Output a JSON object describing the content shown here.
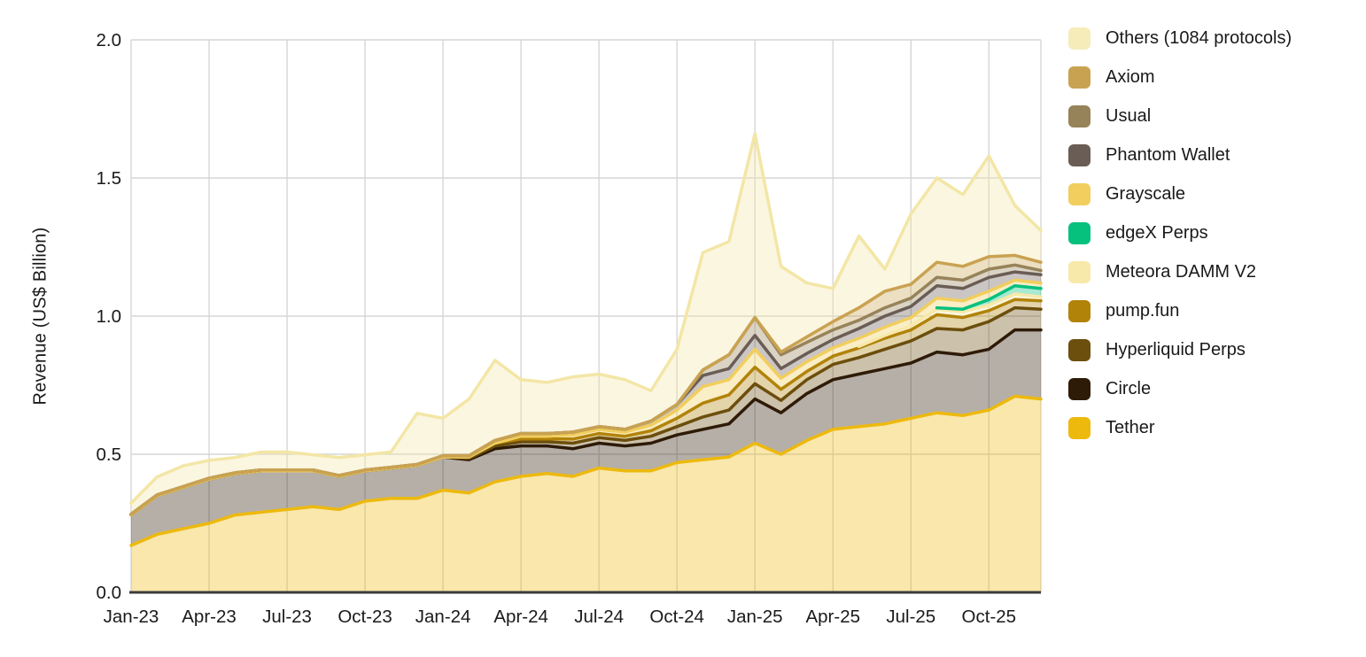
{
  "y_axis": {
    "title": "Revenue (US$ Billion)",
    "tick_labels": [
      "0.0",
      "0.5",
      "1.0",
      "1.5",
      "2.0"
    ],
    "tick_values": [
      0,
      0.5,
      1.0,
      1.5,
      2.0
    ]
  },
  "x_axis": {
    "tick_labels": [
      "Jan-23",
      "Apr-23",
      "Jul-23",
      "Oct-23",
      "Jan-24",
      "Apr-24",
      "Jul-24",
      "Oct-24",
      "Jan-25",
      "Apr-25",
      "Jul-25",
      "Oct-25"
    ],
    "tick_every_months": 3
  },
  "chart_data": {
    "type": "area",
    "stacked": true,
    "title": "",
    "xlabel": "",
    "ylabel": "Revenue (US$ Billion)",
    "ylim": [
      0,
      2.0
    ],
    "grid": true,
    "legend_position": "right",
    "unit": "US$ Billion per month",
    "months": [
      "Jan-23",
      "Feb-23",
      "Mar-23",
      "Apr-23",
      "May-23",
      "Jun-23",
      "Jul-23",
      "Aug-23",
      "Sep-23",
      "Oct-23",
      "Nov-23",
      "Dec-23",
      "Jan-24",
      "Feb-24",
      "Mar-24",
      "Apr-24",
      "May-24",
      "Jun-24",
      "Jul-24",
      "Aug-24",
      "Sep-24",
      "Oct-24",
      "Nov-24",
      "Dec-24",
      "Jan-25",
      "Feb-25",
      "Mar-25",
      "Apr-25",
      "May-25",
      "Jun-25",
      "Jul-25",
      "Aug-25",
      "Sep-25",
      "Oct-25",
      "Nov-25",
      "Dec-25"
    ],
    "legend_order_top_to_bottom": [
      "Others (1084 protocols)",
      "Axiom",
      "Usual",
      "Phantom Wallet",
      "Grayscale",
      "edgeX Perps",
      "Meteora DAMM V2",
      "pump.fun",
      "Hyperliquid Perps",
      "Circle",
      "Tether"
    ],
    "series": [
      {
        "name": "Tether",
        "color": "#EDB90D",
        "line_start": 0,
        "values": [
          0.17,
          0.21,
          0.23,
          0.25,
          0.28,
          0.29,
          0.3,
          0.31,
          0.3,
          0.33,
          0.34,
          0.34,
          0.37,
          0.36,
          0.4,
          0.42,
          0.43,
          0.42,
          0.45,
          0.44,
          0.44,
          0.47,
          0.48,
          0.49,
          0.54,
          0.5,
          0.55,
          0.59,
          0.6,
          0.61,
          0.63,
          0.65,
          0.64,
          0.66,
          0.71,
          0.7
        ]
      },
      {
        "name": "Circle",
        "color": "#2E1B07",
        "line_start": 0,
        "values": [
          0.11,
          0.14,
          0.15,
          0.16,
          0.15,
          0.15,
          0.14,
          0.13,
          0.12,
          0.11,
          0.11,
          0.12,
          0.12,
          0.12,
          0.12,
          0.11,
          0.1,
          0.1,
          0.09,
          0.09,
          0.1,
          0.1,
          0.11,
          0.12,
          0.16,
          0.15,
          0.17,
          0.18,
          0.19,
          0.2,
          0.2,
          0.22,
          0.22,
          0.22,
          0.24,
          0.25
        ]
      },
      {
        "name": "Hyperliquid Perps",
        "color": "#6C4E0D",
        "line_start": 0,
        "values": [
          0,
          0,
          0,
          0,
          0,
          0,
          0,
          0,
          0,
          0,
          0,
          0,
          0,
          0.005,
          0.01,
          0.015,
          0.015,
          0.02,
          0.02,
          0.02,
          0.025,
          0.03,
          0.045,
          0.05,
          0.055,
          0.045,
          0.05,
          0.055,
          0.06,
          0.07,
          0.08,
          0.085,
          0.09,
          0.1,
          0.08,
          0.075
        ]
      },
      {
        "name": "pump.fun",
        "color": "#B18309",
        "line_start": 0,
        "values": [
          0,
          0,
          0,
          0,
          0,
          0,
          0,
          0,
          0,
          0,
          0,
          0,
          0,
          0.005,
          0.01,
          0.01,
          0.01,
          0.015,
          0.015,
          0.015,
          0.02,
          0.03,
          0.05,
          0.055,
          0.06,
          0.04,
          0.03,
          0.03,
          0.035,
          0.04,
          0.04,
          0.05,
          0.045,
          0.04,
          0.03,
          0.03
        ]
      },
      {
        "name": "Meteora DAMM V2",
        "color": "#F7E9A9",
        "line_start": 28,
        "values": [
          0,
          0,
          0,
          0,
          0,
          0,
          0,
          0,
          0,
          0,
          0,
          0,
          0,
          0,
          0,
          0,
          0,
          0,
          0,
          0,
          0,
          0,
          0,
          0,
          0,
          0,
          0,
          0,
          0.005,
          0.01,
          0.015,
          0.02,
          0.02,
          0.02,
          0.02,
          0.015
        ]
      },
      {
        "name": "edgeX Perps",
        "color": "#06C17E",
        "line_start": 31,
        "values": [
          0,
          0,
          0,
          0,
          0,
          0,
          0,
          0,
          0,
          0,
          0,
          0,
          0,
          0,
          0,
          0,
          0,
          0,
          0,
          0,
          0,
          0,
          0,
          0,
          0,
          0,
          0,
          0,
          0,
          0,
          0,
          0.005,
          0.01,
          0.02,
          0.03,
          0.03
        ]
      },
      {
        "name": "Grayscale",
        "color": "#F1CE5D",
        "line_start": 0,
        "values": [
          0,
          0,
          0,
          0,
          0,
          0,
          0,
          0,
          0,
          0,
          0,
          0,
          0,
          0,
          0,
          0.01,
          0.01,
          0.015,
          0.015,
          0.015,
          0.02,
          0.03,
          0.06,
          0.055,
          0.065,
          0.04,
          0.035,
          0.03,
          0.03,
          0.03,
          0.03,
          0.035,
          0.03,
          0.03,
          0.02,
          0.02
        ]
      },
      {
        "name": "Phantom Wallet",
        "color": "#6A5D55",
        "line_start": 0,
        "values": [
          0.003,
          0.003,
          0.003,
          0.003,
          0.003,
          0.003,
          0.003,
          0.003,
          0.003,
          0.003,
          0.003,
          0.003,
          0.005,
          0.005,
          0.01,
          0.01,
          0.01,
          0.01,
          0.01,
          0.01,
          0.015,
          0.02,
          0.04,
          0.04,
          0.05,
          0.035,
          0.03,
          0.03,
          0.035,
          0.04,
          0.04,
          0.045,
          0.045,
          0.05,
          0.03,
          0.03
        ]
      },
      {
        "name": "Usual",
        "color": "#97835A",
        "line_start": 0,
        "values": [
          0,
          0,
          0,
          0,
          0,
          0,
          0,
          0,
          0,
          0,
          0,
          0,
          0,
          0,
          0,
          0,
          0,
          0,
          0,
          0,
          0,
          0,
          0.02,
          0.05,
          0.065,
          0.05,
          0.04,
          0.035,
          0.03,
          0.03,
          0.03,
          0.03,
          0.03,
          0.03,
          0.025,
          0.015
        ]
      },
      {
        "name": "Axiom",
        "color": "#C9A251",
        "line_start": 0,
        "values": [
          0,
          0,
          0,
          0,
          0,
          0,
          0,
          0,
          0,
          0,
          0,
          0,
          0,
          0,
          0,
          0,
          0,
          0,
          0,
          0,
          0,
          0,
          0,
          0,
          0,
          0.01,
          0.02,
          0.03,
          0.045,
          0.06,
          0.05,
          0.055,
          0.05,
          0.045,
          0.035,
          0.03
        ]
      },
      {
        "name": "Others (1084 protocols)",
        "color": "#F3E6A6",
        "swatch_color": "#F5ECBA",
        "line_start": 0,
        "values": [
          0.04,
          0.065,
          0.075,
          0.065,
          0.055,
          0.065,
          0.065,
          0.055,
          0.065,
          0.055,
          0.055,
          0.185,
          0.135,
          0.205,
          0.29,
          0.195,
          0.185,
          0.2,
          0.19,
          0.18,
          0.11,
          0.2,
          0.425,
          0.41,
          0.665,
          0.31,
          0.195,
          0.12,
          0.26,
          0.08,
          0.255,
          0.305,
          0.26,
          0.365,
          0.18,
          0.115
        ]
      }
    ],
    "style": {
      "fill_opacity": 0.35,
      "line_width": 3.5,
      "gridline_color": "#d6d6d6",
      "axis_line_color": "#3b3b3b",
      "tick_text_color": "#1a1a1a",
      "background": "#ffffff"
    }
  }
}
